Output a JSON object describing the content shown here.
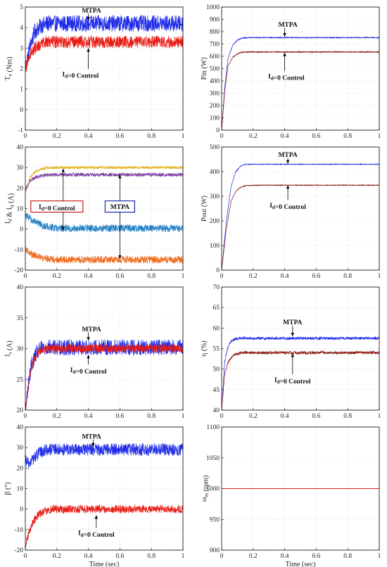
{
  "figure": {
    "xlabel_shared": "Time (sec)",
    "colors": {
      "mtpa": "#1f2be8",
      "id0": "#e81a12",
      "id0_dark": "#8b1a12",
      "yellow": "#e2b321",
      "purple": "#7b3aa0",
      "cyan": "#1f7fc4",
      "orange": "#ef6a1c",
      "box_red": "#c8201a",
      "box_blue": "#1a2ab0",
      "grid": "#d9d9d9"
    }
  },
  "chart_data": [
    {
      "id": "te",
      "type": "line",
      "title": "",
      "ylabel": "T_e (Nm)",
      "xlabel": "",
      "xlim": [
        0,
        1
      ],
      "ylim": [
        -1,
        5
      ],
      "xticks": [
        "0",
        "0.2",
        "0.4",
        "0.6",
        "0.8",
        "1"
      ],
      "yticks": [
        "-1",
        "0",
        "1",
        "2",
        "3",
        "4",
        "5"
      ],
      "series": [
        {
          "name": "",
          "color": "#1f2be8",
          "x": [
            0,
            0.03,
            0.06,
            0.1,
            0.14,
            0.2,
            0.5,
            1
          ],
          "y": [
            2,
            3.1,
            3.8,
            4.1,
            4.2,
            4.2,
            4.2,
            4.2
          ],
          "noise": 0.4
        },
        {
          "name": "",
          "color": "#e81a12",
          "x": [
            0,
            0.03,
            0.06,
            0.1,
            0.14,
            0.2,
            0.5,
            1
          ],
          "y": [
            2,
            2.7,
            3.0,
            3.2,
            3.3,
            3.3,
            3.3,
            3.3
          ],
          "noise": 0.3
        }
      ],
      "annotations": [
        {
          "text": "MTPA",
          "x": 0.42,
          "y": 4.85,
          "ax": 0.4,
          "ay": 4.35
        },
        {
          "text": "I_d=0 Control",
          "x": 0.35,
          "y": 1.75,
          "ax": 0.4,
          "ay": 3.0
        }
      ]
    },
    {
      "id": "pin",
      "type": "line",
      "title": "",
      "ylabel": "Pin (W)",
      "xlabel": "",
      "xlim": [
        0,
        1
      ],
      "ylim": [
        0,
        1000
      ],
      "xticks": [
        "0",
        "0.2",
        "0.4",
        "0.6",
        "0.8",
        "1"
      ],
      "yticks": [
        "0",
        "100",
        "200",
        "300",
        "400",
        "500",
        "600",
        "700",
        "800",
        "900",
        "1000"
      ],
      "series": [
        {
          "name": "",
          "color": "#1f2be8",
          "x": [
            0,
            0.02,
            0.04,
            0.07,
            0.1,
            0.13,
            0.17,
            0.25,
            1
          ],
          "y": [
            0,
            350,
            580,
            690,
            730,
            748,
            752,
            752,
            752
          ],
          "noise": 4
        },
        {
          "name": "",
          "color": "#8b1a12",
          "x": [
            0,
            0.02,
            0.04,
            0.07,
            0.1,
            0.13,
            0.17,
            0.25,
            1
          ],
          "y": [
            0,
            320,
            520,
            590,
            620,
            632,
            635,
            635,
            635
          ],
          "noise": 4
        }
      ],
      "annotations": [
        {
          "text": "MTPA",
          "x": 0.42,
          "y": 860,
          "ax": 0.4,
          "ay": 760
        },
        {
          "text": "I_d=0 Control",
          "x": 0.41,
          "y": 440,
          "ax": 0.4,
          "ay": 630
        }
      ]
    },
    {
      "id": "idq",
      "type": "line",
      "title": "",
      "ylabel": "I_d & I_q (A)",
      "xlabel": "",
      "xlim": [
        0,
        1
      ],
      "ylim": [
        -20,
        40
      ],
      "xticks": [
        "0",
        "0.2",
        "0.4",
        "0.6",
        "0.8",
        "1"
      ],
      "yticks": [
        "-20",
        "-10",
        "0",
        "10",
        "20",
        "30",
        "40"
      ],
      "series": [
        {
          "name": "",
          "color": "#e2b321",
          "x": [
            0,
            0.03,
            0.07,
            0.12,
            0.2,
            1
          ],
          "y": [
            19,
            25,
            28.5,
            29.7,
            30,
            30
          ],
          "noise": 0.7
        },
        {
          "name": "",
          "color": "#7b3aa0",
          "x": [
            0,
            0.03,
            0.07,
            0.12,
            0.2,
            1
          ],
          "y": [
            19,
            23.5,
            25.5,
            26.3,
            26.5,
            26.5
          ],
          "noise": 0.9
        },
        {
          "name": "",
          "color": "#1f7fc4",
          "x": [
            0,
            0.04,
            0.08,
            0.12,
            0.2,
            1
          ],
          "y": [
            7,
            4.5,
            2.8,
            1.5,
            0.5,
            0.3
          ],
          "noise": 1.8
        },
        {
          "name": "",
          "color": "#ef6a1c",
          "x": [
            0,
            0.04,
            0.08,
            0.13,
            0.2,
            1
          ],
          "y": [
            -10,
            -12.5,
            -13.5,
            -14.3,
            -14.8,
            -15
          ],
          "noise": 1.8
        }
      ],
      "annotations": [
        {
          "text": "I_d=0 Control",
          "x": 0.2,
          "y": 11,
          "box": "#c8201a",
          "arrows": [
            [
              0.24,
              29.5
            ],
            [
              0.24,
              -0.5
            ]
          ]
        },
        {
          "text": "MTPA",
          "x": 0.6,
          "y": 11,
          "box": "#1a2ab0",
          "arrows": [
            [
              0.6,
              26.5
            ],
            [
              0.6,
              -14.5
            ]
          ]
        }
      ]
    },
    {
      "id": "pout",
      "type": "line",
      "title": "",
      "ylabel": "Pout (W)",
      "xlabel": "",
      "xlim": [
        0,
        1
      ],
      "ylim": [
        0,
        500
      ],
      "xticks": [
        "0",
        "0.2",
        "0.4",
        "0.6",
        "0.8",
        "1"
      ],
      "yticks": [
        "0",
        "100",
        "200",
        "300",
        "400",
        "500"
      ],
      "series": [
        {
          "name": "",
          "color": "#1f2be8",
          "x": [
            0,
            0.03,
            0.06,
            0.09,
            0.12,
            0.15,
            0.25,
            1
          ],
          "y": [
            0,
            200,
            340,
            400,
            422,
            430,
            430,
            430
          ],
          "noise": 1.5
        },
        {
          "name": "",
          "color": "#8b1a12",
          "x": [
            0,
            0.03,
            0.06,
            0.09,
            0.12,
            0.15,
            0.25,
            1
          ],
          "y": [
            0,
            170,
            280,
            320,
            336,
            343,
            345,
            345
          ],
          "noise": 1.5
        }
      ],
      "annotations": [
        {
          "text": "MTPA",
          "x": 0.42,
          "y": 470,
          "ax": 0.42,
          "ay": 432
        },
        {
          "text": "I_d=0 Control",
          "x": 0.42,
          "y": 265,
          "ax": 0.42,
          "ay": 345
        }
      ]
    },
    {
      "id": "is",
      "type": "line",
      "title": "",
      "ylabel": "I_s (A)",
      "xlabel": "",
      "xlim": [
        0,
        1
      ],
      "ylim": [
        20,
        40
      ],
      "xticks": [
        "0",
        "0.2",
        "0.4",
        "0.6",
        "0.8",
        "1"
      ],
      "yticks": [
        "20",
        "25",
        "30",
        "35",
        "40"
      ],
      "series": [
        {
          "name": "",
          "color": "#1f2be8",
          "x": [
            0,
            0.02,
            0.04,
            0.07,
            0.1,
            0.15,
            1
          ],
          "y": [
            20,
            24.5,
            27.5,
            29.2,
            30,
            30.2,
            30.2
          ],
          "noise": 1.3
        },
        {
          "name": "",
          "color": "#e81a12",
          "x": [
            0,
            0.02,
            0.04,
            0.07,
            0.1,
            0.15,
            1
          ],
          "y": [
            20,
            24,
            27,
            29,
            29.8,
            30,
            30
          ],
          "noise": 0.7
        }
      ],
      "annotations": [
        {
          "text": "MTPA",
          "x": 0.42,
          "y": 33.2,
          "ax": 0.4,
          "ay": 31.3
        },
        {
          "text": "I_d=0 Control",
          "x": 0.4,
          "y": 26.6,
          "ax": 0.4,
          "ay": 29.0
        }
      ]
    },
    {
      "id": "eta",
      "type": "line",
      "title": "",
      "ylabel": "η (%)",
      "xlabel": "",
      "xlim": [
        0,
        1
      ],
      "ylim": [
        40,
        70
      ],
      "xticks": [
        "0",
        "0.2",
        "0.4",
        "0.6",
        "0.8",
        "1"
      ],
      "yticks": [
        "40",
        "45",
        "50",
        "55",
        "60",
        "65",
        "70"
      ],
      "series": [
        {
          "name": "",
          "color": "#1f2be8",
          "x": [
            0,
            0.02,
            0.04,
            0.06,
            0.09,
            0.13,
            0.2,
            1
          ],
          "y": [
            40,
            52,
            55.5,
            56.8,
            57.4,
            57.6,
            57.5,
            57.5
          ],
          "noise": 0.35
        },
        {
          "name": "",
          "color": "#8b1a12",
          "x": [
            0,
            0.02,
            0.04,
            0.06,
            0.09,
            0.13,
            0.2,
            1
          ],
          "y": [
            40,
            49,
            51.5,
            52.8,
            53.6,
            54,
            54,
            54
          ],
          "noise": 0.35
        }
      ],
      "annotations": [
        {
          "text": "MTPA",
          "x": 0.45,
          "y": 61.5,
          "ax": 0.45,
          "ay": 58.0
        },
        {
          "text": "I_d=0 Control",
          "x": 0.45,
          "y": 47.5,
          "ax": 0.45,
          "ay": 53.8
        }
      ]
    },
    {
      "id": "beta",
      "type": "line",
      "title": "",
      "ylabel": "β (°)",
      "xlabel": "Time (sec)",
      "xlim": [
        0,
        1
      ],
      "ylim": [
        -20,
        40
      ],
      "xticks": [
        "0",
        "0.2",
        "0.4",
        "0.6",
        "0.8",
        "1"
      ],
      "yticks": [
        "-20",
        "-10",
        "0",
        "10",
        "20",
        "30",
        "40"
      ],
      "series": [
        {
          "name": "",
          "color": "#1f2be8",
          "x": [
            0,
            0.02,
            0.05,
            0.09,
            0.14,
            0.2,
            1
          ],
          "y": [
            24,
            22,
            24.5,
            27.5,
            29,
            29,
            29
          ],
          "noise": 3
        },
        {
          "name": "",
          "color": "#e81a12",
          "x": [
            0,
            0.02,
            0.05,
            0.08,
            0.12,
            0.18,
            1
          ],
          "y": [
            -18,
            -12,
            -6,
            -3,
            -1,
            0,
            0
          ],
          "noise": 2
        }
      ],
      "annotations": [
        {
          "text": "MTPA",
          "x": 0.42,
          "y": 35.5,
          "ax": 0.43,
          "ay": 30.5
        },
        {
          "text": "I_d=0 Control",
          "x": 0.45,
          "y": -11.5,
          "ax": 0.45,
          "ay": -3
        }
      ]
    },
    {
      "id": "wm",
      "type": "line",
      "title": "",
      "ylabel": "ω_m (rpm)",
      "xlabel": "Time (sec)",
      "xlim": [
        0,
        1
      ],
      "ylim": [
        900,
        1100
      ],
      "xticks": [
        "0",
        "0.2",
        "0.4",
        "0.6",
        "0.8",
        "1"
      ],
      "yticks": [
        "900",
        "950",
        "1000",
        "1050",
        "1100"
      ],
      "series": [
        {
          "name": "",
          "color": "#e81a12",
          "x": [
            0,
            1
          ],
          "y": [
            1000,
            1000
          ],
          "noise": 0
        }
      ],
      "annotations": []
    }
  ]
}
